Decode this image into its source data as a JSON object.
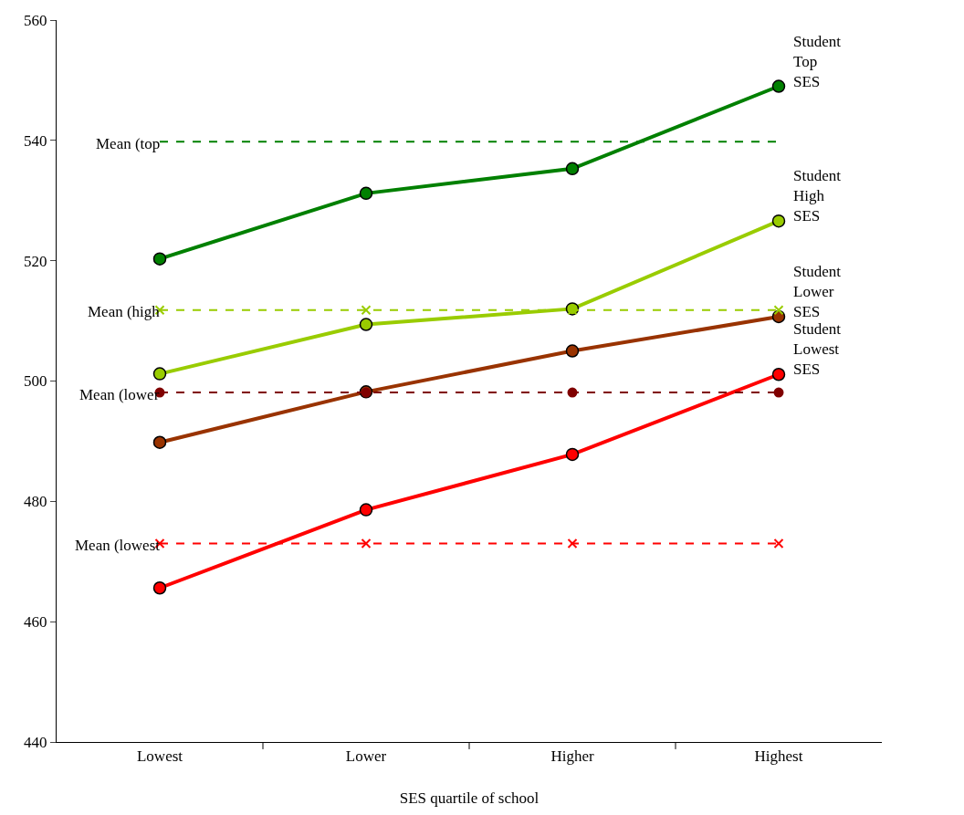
{
  "chart_data": {
    "type": "line",
    "xlabel": "SES quartile of school",
    "categories": [
      "Lowest",
      "Lower",
      "Higher",
      "Highest"
    ],
    "ylim": [
      440,
      560
    ],
    "yticks": [
      440,
      460,
      480,
      500,
      520,
      540,
      560
    ],
    "series": [
      {
        "name": "Student Top SES",
        "color": "#008000",
        "values": [
          520.3,
          531.2,
          535.3,
          549.0
        ],
        "marker": "circle",
        "line_style": "solid"
      },
      {
        "name": "Student High SES",
        "color": "#99cc00",
        "values": [
          501.2,
          509.4,
          512.0,
          526.6
        ],
        "marker": "circle",
        "line_style": "solid"
      },
      {
        "name": "Student Lower SES",
        "color": "#993300",
        "values": [
          489.8,
          498.2,
          505.0,
          510.7
        ],
        "marker": "circle",
        "line_style": "solid"
      },
      {
        "name": "Student Lowest SES",
        "color": "#ff0000",
        "values": [
          465.6,
          478.6,
          487.8,
          501.1
        ],
        "marker": "circle",
        "line_style": "solid"
      },
      {
        "name": "Mean (top",
        "color": "#008000",
        "values": [
          539.8,
          539.8,
          539.8,
          539.8
        ],
        "marker": "none",
        "line_style": "dashed"
      },
      {
        "name": "Mean (high",
        "color": "#99cc00",
        "values": [
          511.8,
          511.8,
          511.8,
          511.8
        ],
        "marker": "cross",
        "line_style": "dashed"
      },
      {
        "name": "Mean (lower",
        "color": "#800000",
        "values": [
          498.1,
          498.1,
          498.1,
          498.1
        ],
        "marker": "circle",
        "line_style": "dashed"
      },
      {
        "name": "Mean (lowest",
        "color": "#ff0000",
        "values": [
          473.0,
          473.0,
          473.0,
          473.0
        ],
        "marker": "cross",
        "line_style": "dashed"
      }
    ]
  }
}
